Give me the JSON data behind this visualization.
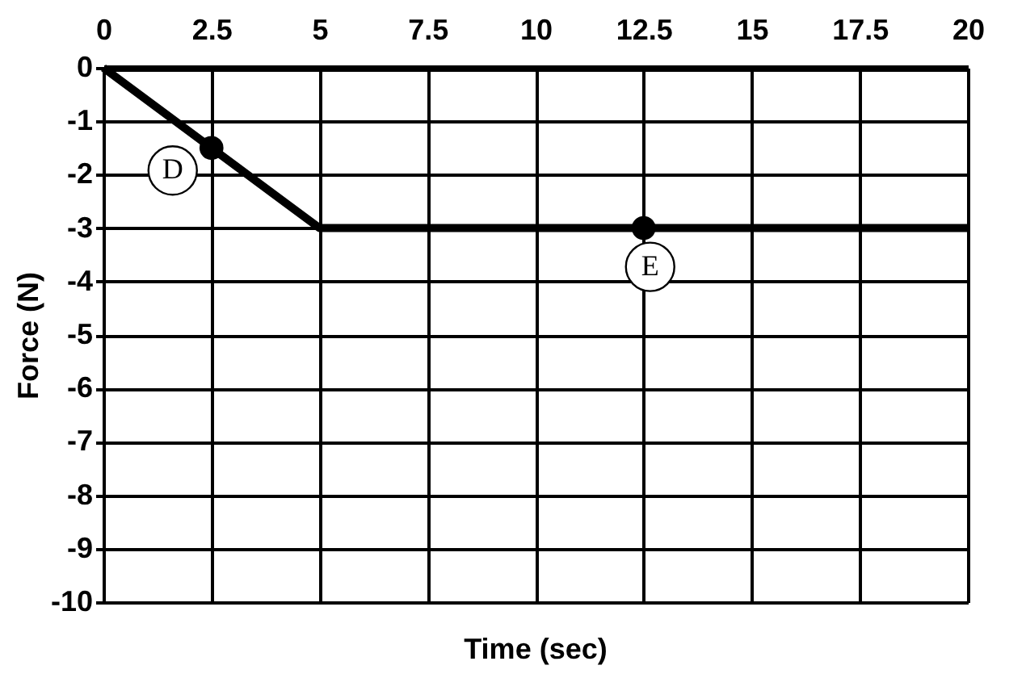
{
  "chart_data": {
    "type": "line",
    "xlabel": "Time (sec)",
    "ylabel": "Force (N)",
    "series": [
      {
        "color": "#000000",
        "x": [
          0,
          5,
          20
        ],
        "values": [
          0,
          -3,
          -3
        ],
        "marker": "none"
      },
      {
        "type": "scatter",
        "color": "#000000",
        "x": [
          2.5,
          12.5
        ],
        "values": [
          -1.5,
          -3
        ],
        "marker": "circle"
      }
    ],
    "annotations": [
      {
        "text": "D",
        "x": 2.5,
        "y": -1.5
      },
      {
        "text": "E",
        "x": 12.5,
        "y": -3
      }
    ],
    "xlim": [
      0,
      20
    ],
    "xticks": [
      0,
      2.5,
      5,
      7.5,
      10,
      12.5,
      15,
      17.5,
      20
    ],
    "ylim": [
      -10,
      0
    ],
    "yticks": [
      0,
      -1,
      -2,
      -3,
      -4,
      -5,
      -6,
      -7,
      -8,
      -9,
      -10
    ],
    "grid": true
  }
}
